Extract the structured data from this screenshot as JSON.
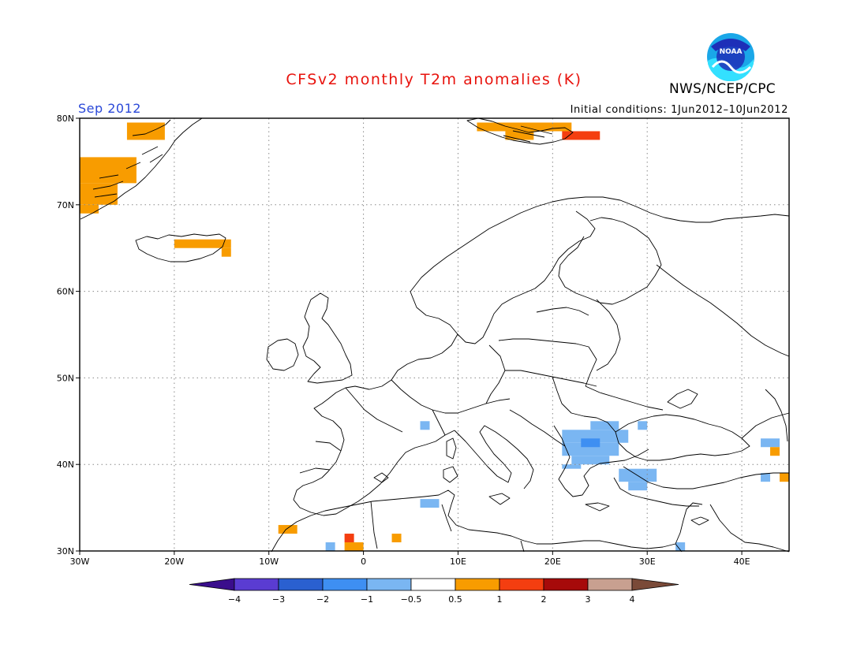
{
  "title": "CFSv2 monthly T2m anomalies (K)",
  "period": "Sep 2012",
  "initial_conditions": "Initial conditions: 1Jun2012–10Jun2012",
  "agency": "NWS/NCEP/CPC",
  "logo_text": "NOAA",
  "map": {
    "lon_range": [
      -30,
      45
    ],
    "lat_range": [
      30,
      80
    ],
    "lon_ticks": [
      {
        "value": -30,
        "label": "30W"
      },
      {
        "value": -20,
        "label": "20W"
      },
      {
        "value": -10,
        "label": "10W"
      },
      {
        "value": 0,
        "label": "0"
      },
      {
        "value": 10,
        "label": "10E"
      },
      {
        "value": 20,
        "label": "20E"
      },
      {
        "value": 30,
        "label": "30E"
      },
      {
        "value": 40,
        "label": "40E"
      }
    ],
    "lat_ticks": [
      {
        "value": 30,
        "label": "30N"
      },
      {
        "value": 40,
        "label": "40N"
      },
      {
        "value": 50,
        "label": "50N"
      },
      {
        "value": 60,
        "label": "60N"
      },
      {
        "value": 70,
        "label": "70N"
      },
      {
        "value": 80,
        "label": "80N"
      }
    ],
    "grid": true,
    "anomaly_cells": [
      {
        "lon": [
          -25,
          -21
        ],
        "lat": [
          77.5,
          79.5
        ],
        "class": "0.5 to 1"
      },
      {
        "lon": [
          -30,
          -24
        ],
        "lat": [
          72.5,
          75.5
        ],
        "class": "0.5 to 1"
      },
      {
        "lon": [
          -30,
          -26
        ],
        "lat": [
          70,
          72.5
        ],
        "class": "0.5 to 1"
      },
      {
        "lon": [
          -30,
          -28
        ],
        "lat": [
          69,
          70
        ],
        "class": "0.5 to 1"
      },
      {
        "lon": [
          -20,
          -14
        ],
        "lat": [
          65,
          66
        ],
        "class": "0.5 to 1"
      },
      {
        "lon": [
          -15,
          -14
        ],
        "lat": [
          64,
          65
        ],
        "class": "0.5 to 1"
      },
      {
        "lon": [
          12,
          22
        ],
        "lat": [
          78.5,
          79.5
        ],
        "class": "0.5 to 1"
      },
      {
        "lon": [
          15,
          18
        ],
        "lat": [
          77.5,
          78.5
        ],
        "class": "0.5 to 1"
      },
      {
        "lon": [
          21,
          25
        ],
        "lat": [
          77.5,
          78.5
        ],
        "class": "1 to 2"
      },
      {
        "lon": [
          21,
          28
        ],
        "lat": [
          42.5,
          44
        ],
        "class": "-1 to -0.5"
      },
      {
        "lon": [
          24,
          27
        ],
        "lat": [
          44,
          45
        ],
        "class": "-1 to -0.5"
      },
      {
        "lon": [
          21,
          27
        ],
        "lat": [
          41,
          42.5
        ],
        "class": "-1 to -0.5"
      },
      {
        "lon": [
          22,
          26
        ],
        "lat": [
          40,
          41
        ],
        "class": "-1 to -0.5"
      },
      {
        "lon": [
          21,
          23
        ],
        "lat": [
          39.5,
          40
        ],
        "class": "-1 to -0.5"
      },
      {
        "lon": [
          23,
          25
        ],
        "lat": [
          42,
          43
        ],
        "class": "-2 to -1"
      },
      {
        "lon": [
          27,
          31
        ],
        "lat": [
          38,
          39.5
        ],
        "class": "-1 to -0.5"
      },
      {
        "lon": [
          28,
          30
        ],
        "lat": [
          37,
          38
        ],
        "class": "-1 to -0.5"
      },
      {
        "lon": [
          29,
          30
        ],
        "lat": [
          44,
          45
        ],
        "class": "-1 to -0.5"
      },
      {
        "lon": [
          6,
          7
        ],
        "lat": [
          44,
          45
        ],
        "class": "-1 to -0.5"
      },
      {
        "lon": [
          6,
          8
        ],
        "lat": [
          35,
          36
        ],
        "class": "-1 to -0.5"
      },
      {
        "lon": [
          33,
          34
        ],
        "lat": [
          30,
          31
        ],
        "class": "-1 to -0.5"
      },
      {
        "lon": [
          -4,
          -3
        ],
        "lat": [
          30,
          31
        ],
        "class": "-1 to -0.5"
      },
      {
        "lon": [
          42,
          44
        ],
        "lat": [
          42,
          43
        ],
        "class": "-1 to -0.5"
      },
      {
        "lon": [
          42,
          43
        ],
        "lat": [
          38,
          39
        ],
        "class": "-1 to -0.5"
      },
      {
        "lon": [
          -9,
          -7
        ],
        "lat": [
          32,
          33
        ],
        "class": "0.5 to 1"
      },
      {
        "lon": [
          -2,
          0
        ],
        "lat": [
          30,
          31
        ],
        "class": "0.5 to 1"
      },
      {
        "lon": [
          3,
          4
        ],
        "lat": [
          31,
          32
        ],
        "class": "0.5 to 1"
      },
      {
        "lon": [
          43,
          44
        ],
        "lat": [
          41,
          42
        ],
        "class": "0.5 to 1"
      },
      {
        "lon": [
          44,
          45
        ],
        "lat": [
          38,
          39
        ],
        "class": "0.5 to 1"
      },
      {
        "lon": [
          -2,
          -1
        ],
        "lat": [
          31,
          32
        ],
        "class": "1 to 2"
      }
    ]
  },
  "colorbar": {
    "ticks": [
      "−4",
      "−3",
      "−2",
      "−1",
      "−0.5",
      "0.5",
      "1",
      "2",
      "3",
      "4"
    ],
    "colors": {
      "below_-4": "#3a0e8c",
      "-4 to -3": "#5a3cd2",
      "-3 to -2": "#2a60d0",
      "-2 to -1": "#3e8ff2",
      "-1 to -0.5": "#7ab6f2",
      "-0.5 to 0.5": "#ffffff",
      "0.5 to 1": "#f89c00",
      "1 to 2": "#f43e10",
      "2 to 3": "#a60a0a",
      "3 to 4": "#c8a090",
      "above_4": "#7a4a38"
    }
  },
  "style": {
    "title_color": "#e8130d",
    "period_color": "#2a48d8"
  }
}
